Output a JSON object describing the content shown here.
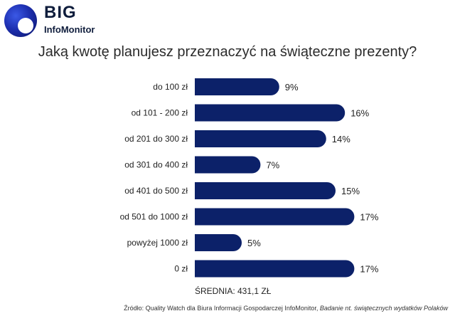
{
  "logo": {
    "big": "BIG",
    "sub": "InfoMonitor"
  },
  "chart_data": {
    "type": "bar",
    "orientation": "horizontal",
    "title": "Jaką kwotę planujesz przeznaczyć na świąteczne prezenty?",
    "categories": [
      "do 100 zł",
      "od 101 - 200 zł",
      "od 201 do 300 zł",
      "od 301 do 400 zł",
      "od 401 do 500 zł",
      "od 501 do 1000 zł",
      "powyżej 1000 zł",
      "0 zł"
    ],
    "values": [
      9,
      16,
      14,
      7,
      15,
      17,
      5,
      17
    ],
    "value_labels": [
      "9%",
      "16%",
      "14%",
      "7%",
      "15%",
      "17%",
      "5%",
      "17%"
    ],
    "unit": "%",
    "bar_color": "#0c2169",
    "grid": false
  },
  "mean": "ŚREDNIA: 431,1 ZŁ",
  "source": {
    "prefix": "Źródło: Quality Watch dla Biura Informacji Gospodarczej InfoMonitor, ",
    "italic": "Badanie nt. świątecznych wydatków Polaków"
  }
}
